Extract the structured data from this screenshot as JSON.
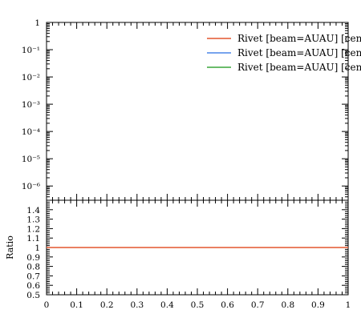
{
  "chart_data": [
    {
      "panel": "main",
      "type": "line",
      "xlim": [
        0,
        1
      ],
      "ylim": [
        3e-07,
        1
      ],
      "yscale": "log",
      "y_tick_labels": [
        "1",
        "10⁻¹",
        "10⁻²",
        "10⁻³",
        "10⁻⁴",
        "10⁻⁵",
        "10⁻⁶"
      ],
      "y_tick_values": [
        1,
        0.1,
        0.01,
        0.001,
        0.0001,
        1e-05,
        1e-06
      ],
      "legend": {
        "placement": "top-right",
        "entries": [
          {
            "label": "Rivet [beam=AUAU] [cen",
            "color": "#e4572e"
          },
          {
            "label": "Rivet [beam=AUAU] [cen",
            "color": "#4a86e8"
          },
          {
            "label": "Rivet [beam=AUAU] [cen",
            "color": "#3aa63a"
          }
        ]
      },
      "series": []
    },
    {
      "panel": "ratio",
      "type": "line",
      "ylabel": "Ratio",
      "xlim": [
        0,
        1
      ],
      "ylim": [
        0.5,
        1.5
      ],
      "x_tick_labels": [
        "0",
        "0.1",
        "0.2",
        "0.3",
        "0.4",
        "0.5",
        "0.6",
        "0.7",
        "0.8",
        "0.9",
        "1"
      ],
      "x_tick_values": [
        0,
        0.1,
        0.2,
        0.3,
        0.4,
        0.5,
        0.6,
        0.7,
        0.8,
        0.9,
        1
      ],
      "y_tick_labels": [
        "0.5",
        "0.6",
        "0.7",
        "0.8",
        "0.9",
        "1",
        "1.1",
        "1.2",
        "1.3",
        "1.4"
      ],
      "y_tick_values": [
        0.5,
        0.6,
        0.7,
        0.8,
        0.9,
        1.0,
        1.1,
        1.2,
        1.3,
        1.4
      ],
      "series": [
        {
          "color": "#e4572e",
          "x": [
            0,
            1
          ],
          "y": [
            1,
            1
          ]
        }
      ]
    }
  ]
}
